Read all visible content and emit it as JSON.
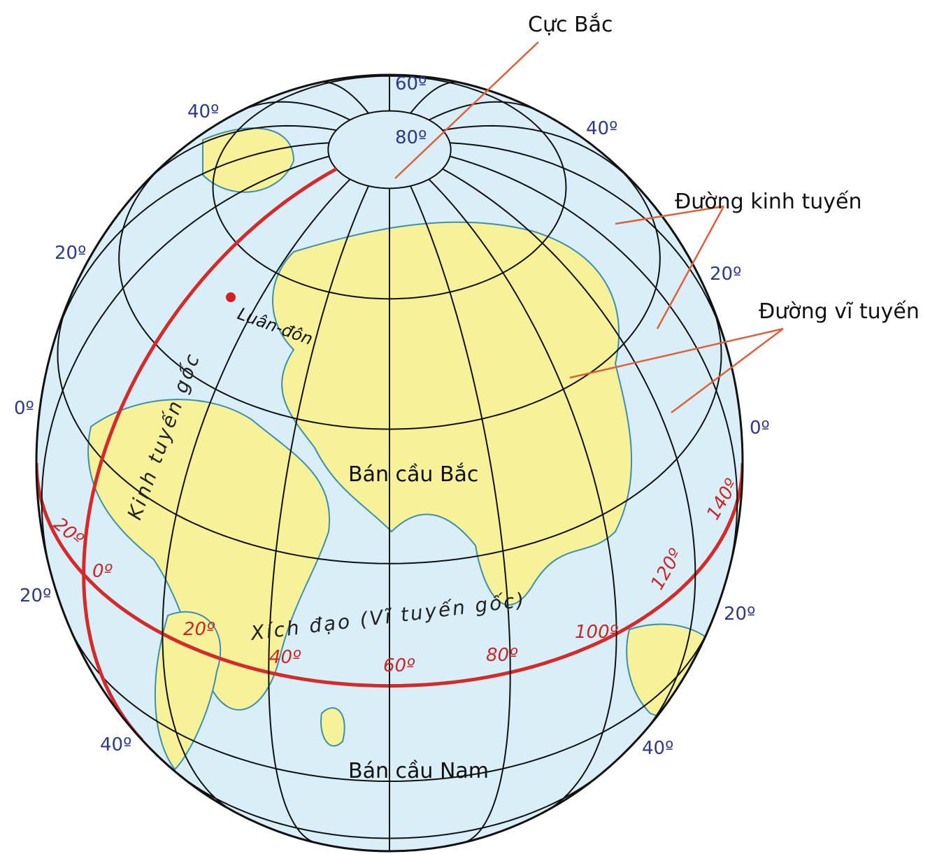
{
  "north_pole": "Cực Bắc",
  "meridian_label": "Đường kinh tuyến",
  "parallel_label": "Đường vĩ tuyến",
  "northern_hemisphere": "Bán cầu Bắc",
  "southern_hemisphere": "Bán cầu Nam",
  "london": "Luân-đôn",
  "prime_meridian": "Kinh tuyến gốc",
  "equator": "Xích đạo (Vĩ tuyến gốc)",
  "latitude_labels": [
    "60º",
    "80º",
    "40º",
    "40º",
    "20º",
    "20º",
    "0º",
    "0º",
    "20º",
    "20º",
    "40º",
    "40º"
  ],
  "longitude_labels": [
    "20º",
    "0º",
    "20º",
    "40º",
    "60º",
    "80º",
    "100º",
    "120º",
    "140º"
  ]
}
